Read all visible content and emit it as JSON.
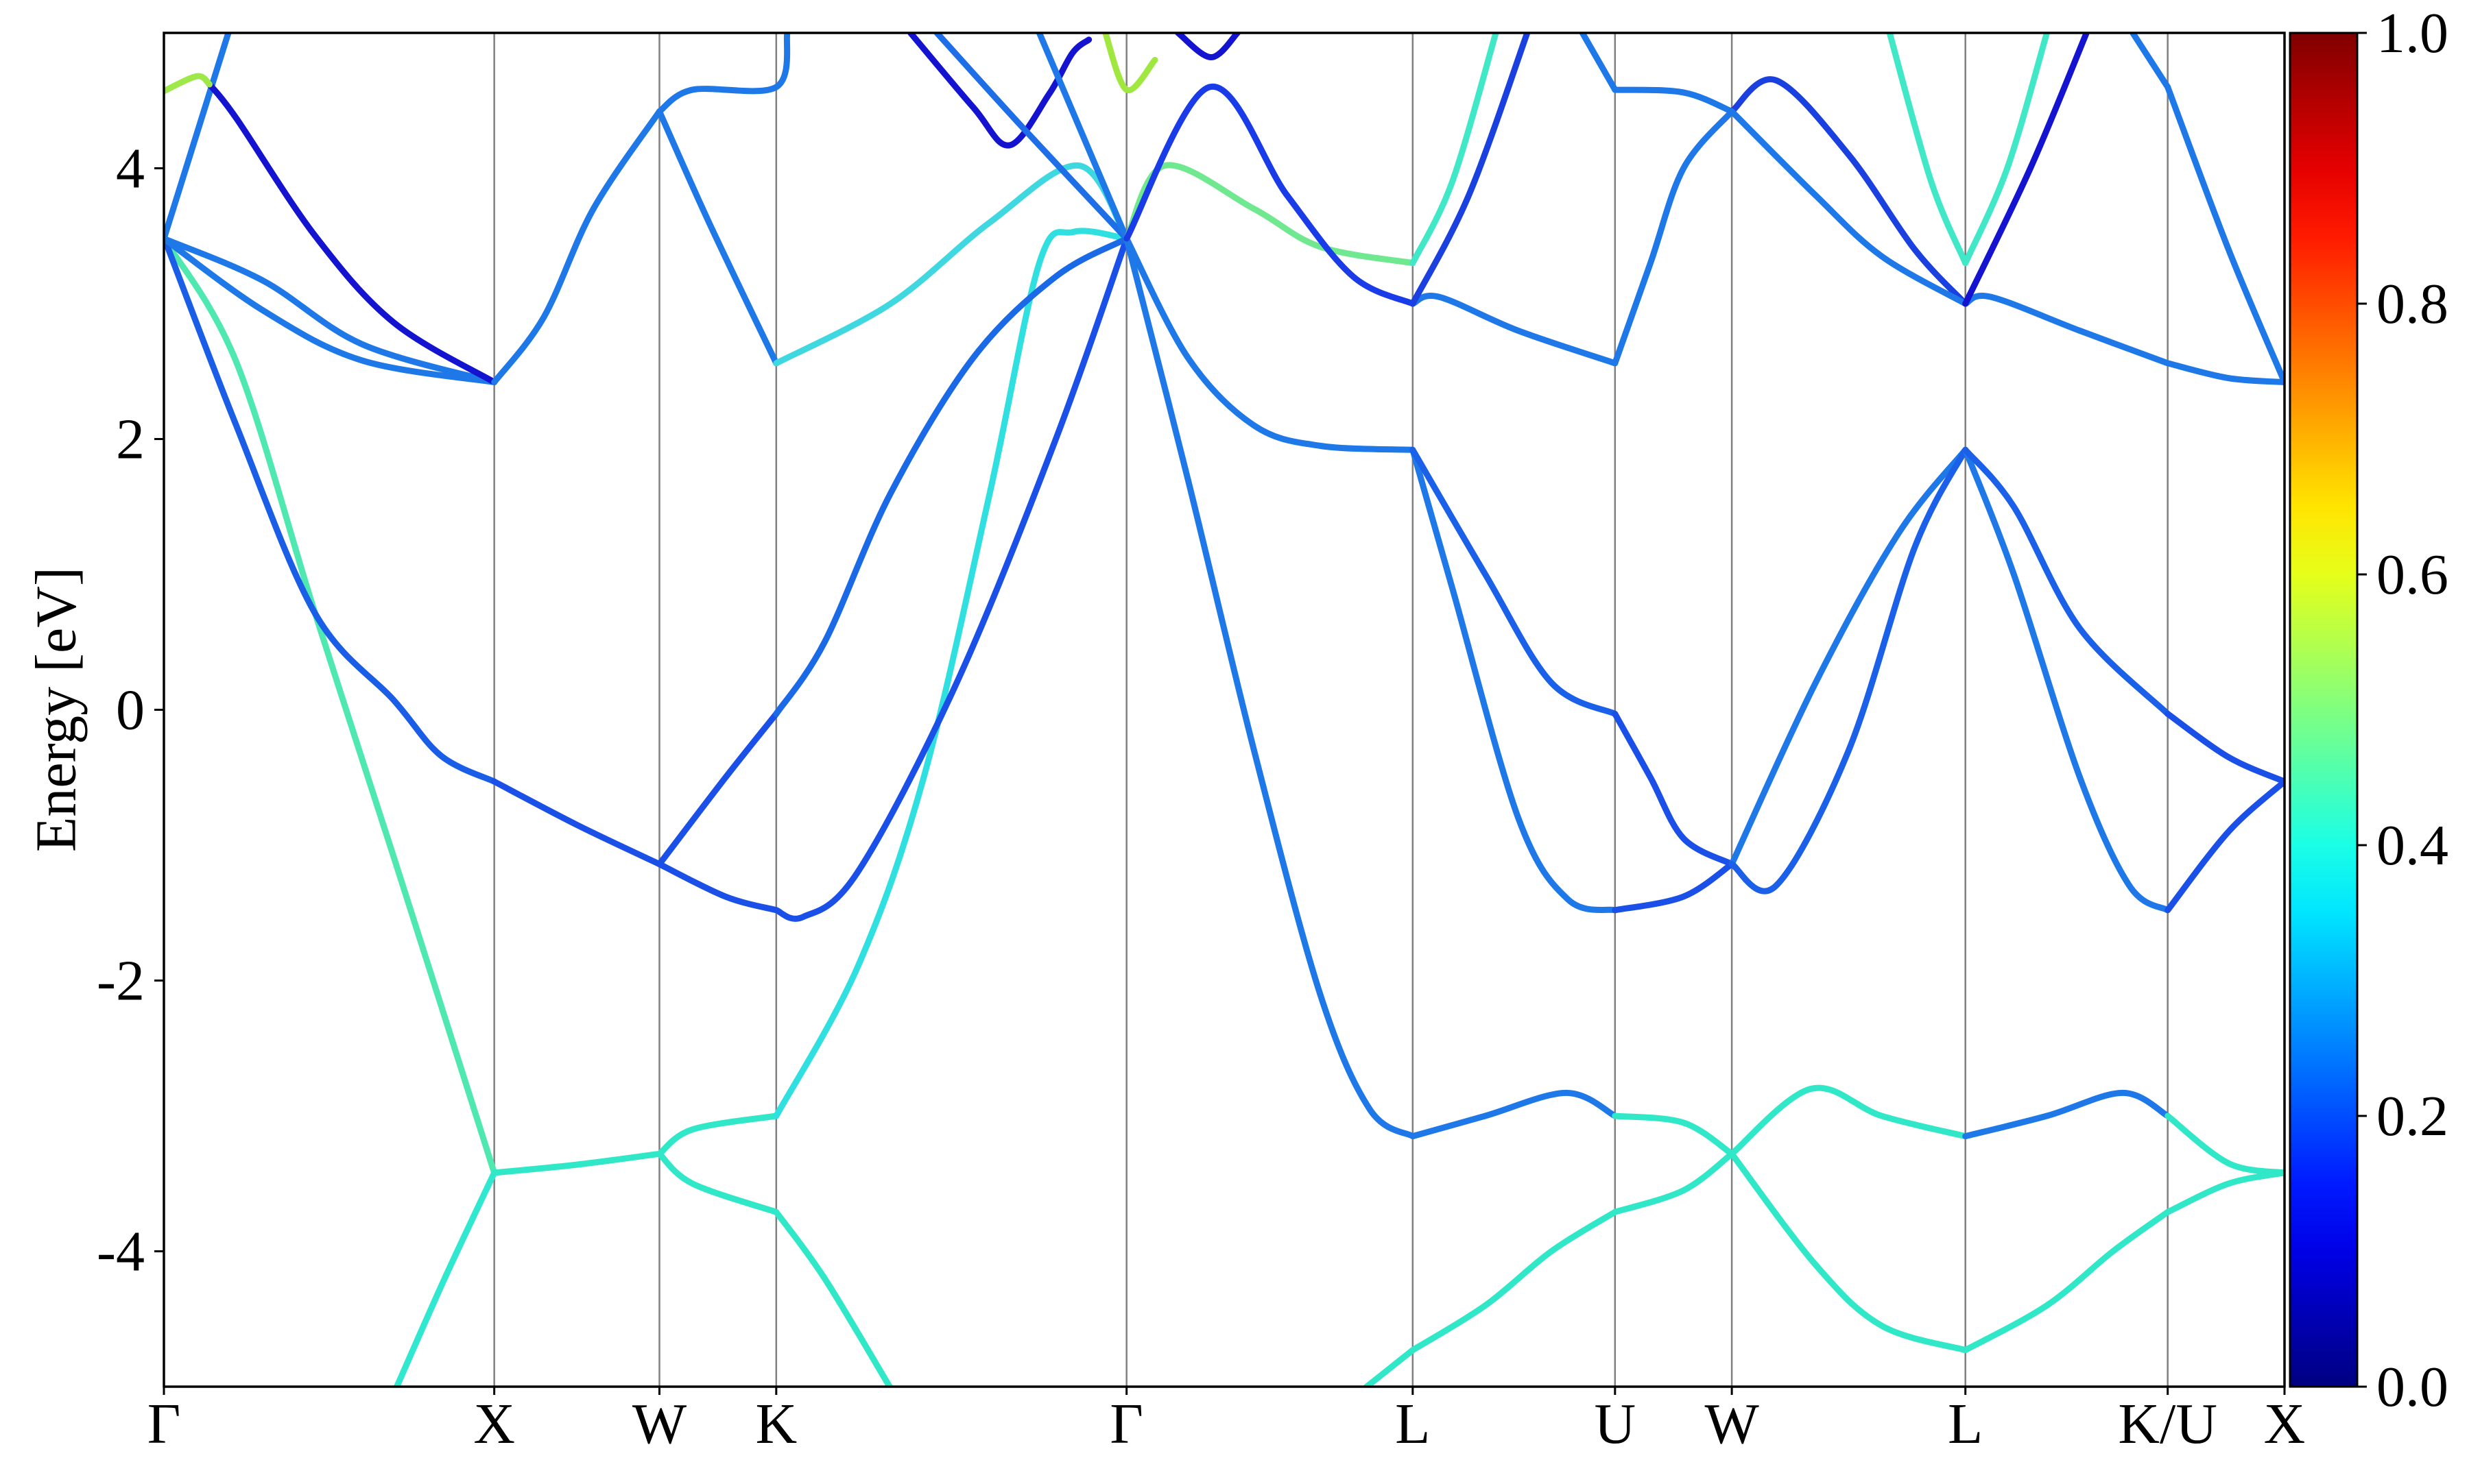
{
  "chart_data": {
    "type": "line",
    "ylabel": "Energy [eV]",
    "xlim": [
      0,
      6.4194
    ],
    "ylim": [
      -5,
      5
    ],
    "xticks": [
      {
        "value": 0,
        "label": "Γ"
      },
      {
        "value": 1,
        "label": "X"
      },
      {
        "value": 1.5,
        "label": "W"
      },
      {
        "value": 1.8536,
        "label": "K"
      },
      {
        "value": 2.9142,
        "label": "Γ"
      },
      {
        "value": 3.7803,
        "label": "L"
      },
      {
        "value": 4.3927,
        "label": "U"
      },
      {
        "value": 4.7463,
        "label": "W"
      },
      {
        "value": 5.4534,
        "label": "L"
      },
      {
        "value": 6.0658,
        "label": "K/U"
      },
      {
        "value": 6.4194,
        "label": "X"
      }
    ],
    "yticks": [
      -4,
      -2,
      0,
      2,
      4
    ],
    "grid": true,
    "colorbar": {
      "colormap": "jet",
      "lim": [
        0,
        1
      ],
      "ticks": [
        {
          "value": 0,
          "label": "0.0"
        },
        {
          "value": 0.2,
          "label": "0.2"
        },
        {
          "value": 0.4,
          "label": "0.4"
        },
        {
          "value": 0.6,
          "label": "0.6"
        },
        {
          "value": 0.8,
          "label": "0.8"
        },
        {
          "value": 1,
          "label": "1.0"
        }
      ]
    },
    "series": [
      {
        "color": "#4ee8b0",
        "x": [
          0,
          0.219,
          0.458,
          0.696,
          1.0
        ],
        "values": [
          3.48,
          2.57,
          0.71,
          -1.09,
          -3.42
        ]
      },
      {
        "color": "#30e8d0",
        "x": [
          0.705,
          0.85,
          1.0
        ],
        "values": [
          -5.0,
          -4.2,
          -3.42
        ]
      },
      {
        "color": "#1a5ee8",
        "x": [
          0,
          0.219,
          0.458,
          0.696,
          0.839,
          1.0
        ],
        "values": [
          3.49,
          2.1,
          0.71,
          0.07,
          -0.34,
          -0.53
        ]
      },
      {
        "color": "#1e78e8",
        "x": [
          0,
          0.3,
          0.6,
          1.0
        ],
        "values": [
          3.48,
          3.17,
          2.7,
          2.42
        ]
      },
      {
        "color": "#1e78e8",
        "x": [
          0,
          0.3,
          0.6,
          1.0
        ],
        "values": [
          3.48,
          2.95,
          2.58,
          2.42
        ]
      },
      {
        "color": "#1e78e8",
        "x": [
          0,
          0.195
        ],
        "values": [
          3.48,
          5.0
        ]
      },
      {
        "color": "#1414d0",
        "x": [
          0.138,
          0.219,
          0.458,
          0.696,
          1.0
        ],
        "values": [
          4.62,
          4.37,
          3.5,
          2.86,
          2.42
        ]
      },
      {
        "color": "#9ee84a",
        "x": [
          0,
          0.1,
          0.138
        ],
        "values": [
          4.57,
          4.68,
          4.62
        ]
      },
      {
        "color": "#30e8c8",
        "x": [
          1,
          1.25,
          1.5
        ],
        "values": [
          -3.42,
          -3.36,
          -3.28
        ]
      },
      {
        "color": "#1a50e8",
        "x": [
          1,
          1.25,
          1.5
        ],
        "values": [
          -0.53,
          -0.85,
          -1.14
        ]
      },
      {
        "color": "#1e78e8",
        "x": [
          1,
          1.15,
          1.3,
          1.5
        ],
        "values": [
          2.42,
          2.9,
          3.7,
          4.42
        ]
      },
      {
        "color": "#30e8c8",
        "x": [
          1.5,
          1.6,
          1.8536
        ],
        "values": [
          -3.28,
          -3.5,
          -3.71
        ]
      },
      {
        "color": "#30e8c8",
        "x": [
          1.5,
          1.6,
          1.8536
        ],
        "values": [
          -3.28,
          -3.1,
          -3.0
        ]
      },
      {
        "color": "#1a50e8",
        "x": [
          1.5,
          1.7,
          1.8536
        ],
        "values": [
          -1.14,
          -1.38,
          -1.48
        ]
      },
      {
        "color": "#1a50e8",
        "x": [
          1.5,
          1.7,
          1.8536
        ],
        "values": [
          -1.14,
          -0.5,
          -0.03
        ]
      },
      {
        "color": "#1e78e8",
        "x": [
          1.5,
          1.65,
          1.8536
        ],
        "values": [
          4.42,
          3.6,
          2.56
        ]
      },
      {
        "color": "#1e78e8",
        "x": [
          1.5,
          1.6,
          1.8536,
          1.887
        ],
        "values": [
          4.42,
          4.58,
          4.6,
          5.0
        ]
      },
      {
        "color": "#30e8c8",
        "x": [
          1.8536,
          2.0,
          2.197
        ],
        "values": [
          -3.71,
          -4.2,
          -5.0
        ]
      },
      {
        "color": "#30e0e0",
        "x": [
          1.8536,
          2.1,
          2.3,
          2.5,
          2.65,
          2.754,
          2.9142
        ],
        "values": [
          -3.0,
          -1.9,
          -0.5,
          1.6,
          3.3,
          3.53,
          3.48
        ]
      },
      {
        "color": "#1a50e8",
        "x": [
          1.8536,
          1.935,
          2.1,
          2.4,
          2.7,
          2.9142
        ],
        "values": [
          -1.48,
          -1.53,
          -1.2,
          0.2,
          2.0,
          3.48
        ]
      },
      {
        "color": "#1a6ae8",
        "x": [
          1.8536,
          2.0,
          2.2,
          2.45,
          2.7,
          2.9142
        ],
        "values": [
          -0.03,
          0.5,
          1.6,
          2.6,
          3.2,
          3.48
        ]
      },
      {
        "color": "#40d8e0",
        "x": [
          1.8536,
          2.2,
          2.5,
          2.77,
          2.9142
        ],
        "values": [
          2.56,
          3.0,
          3.6,
          4.02,
          3.48
        ]
      },
      {
        "color": "#1414d0",
        "x": [
          2.26,
          2.45,
          2.56,
          2.68,
          2.75,
          2.8
        ],
        "values": [
          5.0,
          4.45,
          4.17,
          4.55,
          4.85,
          4.95
        ]
      },
      {
        "color": "#1e6ee8",
        "x": [
          2.34,
          2.6,
          2.9142
        ],
        "values": [
          5.0,
          4.3,
          3.48
        ]
      },
      {
        "color": "#1e78e8",
        "x": [
          2.65,
          2.9142
        ],
        "values": [
          5.0,
          3.48
        ]
      },
      {
        "color": "#a0e840",
        "x": [
          2.85,
          2.9142,
          3.0
        ],
        "values": [
          5.0,
          4.58,
          4.8
        ]
      },
      {
        "color": "#1414d0",
        "x": [
          3.07,
          3.17,
          3.25
        ],
        "values": [
          5.0,
          4.82,
          5.0
        ]
      },
      {
        "color": "#1e78e8",
        "x": [
          2.9142,
          3.1,
          3.3,
          3.5,
          3.65,
          3.7803
        ],
        "values": [
          3.48,
          1.7,
          -0.3,
          -2.1,
          -2.95,
          -3.15
        ]
      },
      {
        "color": "#30e8c8",
        "x": [
          3.641,
          3.7803
        ],
        "values": [
          -5.0,
          -4.73
        ]
      },
      {
        "color": "#1e78e8",
        "x": [
          2.9142,
          3.1,
          3.3,
          3.5,
          3.7803
        ],
        "values": [
          3.48,
          2.6,
          2.1,
          1.95,
          1.92
        ]
      },
      {
        "color": "#70e890",
        "x": [
          2.9142,
          3.03,
          3.3,
          3.5,
          3.7803
        ],
        "values": [
          3.48,
          4.02,
          3.7,
          3.42,
          3.3
        ]
      },
      {
        "color": "#1a3ce8",
        "x": [
          2.9142,
          3.165,
          3.4,
          3.6,
          3.7803
        ],
        "values": [
          3.48,
          4.6,
          3.8,
          3.2,
          3.0
        ]
      },
      {
        "color": "#30e8c8",
        "x": [
          3.7803,
          4.0,
          4.2,
          4.3927
        ],
        "values": [
          -4.73,
          -4.4,
          -4.0,
          -3.71
        ]
      },
      {
        "color": "#1e78e8",
        "x": [
          3.7803,
          4.0,
          4.246,
          4.3927
        ],
        "values": [
          -3.15,
          -3.0,
          -2.83,
          -3.0
        ]
      },
      {
        "color": "#1e78e8",
        "x": [
          3.7803,
          3.9,
          4.1,
          4.25,
          4.3927
        ],
        "values": [
          1.92,
          0.9,
          -0.8,
          -1.4,
          -1.48
        ]
      },
      {
        "color": "#1a60e8",
        "x": [
          3.7803,
          4.0,
          4.2,
          4.3927
        ],
        "values": [
          1.92,
          1.0,
          0.2,
          -0.03
        ]
      },
      {
        "color": "#1e78e8",
        "x": [
          3.7803,
          3.86,
          4.1,
          4.3927
        ],
        "values": [
          3.0,
          3.05,
          2.8,
          2.56
        ]
      },
      {
        "color": "#40e8c8",
        "x": [
          3.7803,
          3.9,
          4.032
        ],
        "values": [
          3.3,
          3.9,
          5.0
        ]
      },
      {
        "color": "#1a40e0",
        "x": [
          3.7803,
          3.95,
          4.127
        ],
        "values": [
          3.0,
          3.8,
          5.0
        ]
      },
      {
        "color": "#1e78e8",
        "x": [
          4.294,
          4.3927
        ],
        "values": [
          5.0,
          4.58
        ]
      },
      {
        "color": "#30e8c8",
        "x": [
          4.3927,
          4.6,
          4.7463
        ],
        "values": [
          -3.71,
          -3.55,
          -3.28
        ]
      },
      {
        "color": "#30e8c8",
        "x": [
          4.3927,
          4.6,
          4.7463
        ],
        "values": [
          -3.0,
          -3.05,
          -3.28
        ]
      },
      {
        "color": "#1a50e8",
        "x": [
          4.3927,
          4.5,
          4.6,
          4.7463
        ],
        "values": [
          -0.03,
          -0.5,
          -0.95,
          -1.14
        ]
      },
      {
        "color": "#1a50e8",
        "x": [
          4.3927,
          4.6,
          4.7463
        ],
        "values": [
          -1.48,
          -1.38,
          -1.14
        ]
      },
      {
        "color": "#1e78e8",
        "x": [
          4.3927,
          4.5,
          4.6,
          4.7463
        ],
        "values": [
          2.56,
          3.3,
          4.0,
          4.42
        ]
      },
      {
        "color": "#1e78e8",
        "x": [
          4.3927,
          4.6,
          4.7463
        ],
        "values": [
          4.58,
          4.56,
          4.42
        ]
      },
      {
        "color": "#30e8c8",
        "x": [
          4.7463,
          5.0,
          5.2,
          5.4534
        ],
        "values": [
          -3.28,
          -4.1,
          -4.55,
          -4.73
        ]
      },
      {
        "color": "#30e8c8",
        "x": [
          4.7463,
          4.985,
          5.2,
          5.4534
        ],
        "values": [
          -3.28,
          -2.8,
          -3.0,
          -3.15
        ]
      },
      {
        "color": "#1e78e8",
        "x": [
          4.7463,
          5.0,
          5.25,
          5.4534
        ],
        "values": [
          -1.14,
          0.2,
          1.3,
          1.92
        ]
      },
      {
        "color": "#1a60e8",
        "x": [
          4.7463,
          4.88,
          5.1,
          5.3,
          5.4534
        ],
        "values": [
          -1.14,
          -1.3,
          -0.3,
          1.2,
          1.92
        ]
      },
      {
        "color": "#1a40e0",
        "x": [
          4.7463,
          4.88,
          5.1,
          5.3,
          5.4534
        ],
        "values": [
          4.42,
          4.65,
          4.1,
          3.4,
          3.0
        ]
      },
      {
        "color": "#1e78e8",
        "x": [
          4.7463,
          5.0,
          5.2,
          5.4534
        ],
        "values": [
          4.42,
          3.8,
          3.35,
          3.0
        ]
      },
      {
        "color": "#40e8c8",
        "x": [
          5.224,
          5.35,
          5.4534
        ],
        "values": [
          5.0,
          3.9,
          3.3
        ]
      },
      {
        "color": "#40e8c8",
        "x": [
          5.4534,
          5.58,
          5.7
        ],
        "values": [
          3.3,
          4.0,
          5.0
        ]
      },
      {
        "color": "#30e8c8",
        "x": [
          5.4534,
          5.7,
          5.9,
          6.0658
        ],
        "values": [
          -4.73,
          -4.4,
          -4.0,
          -3.71
        ]
      },
      {
        "color": "#1e78e8",
        "x": [
          5.4534,
          5.7,
          5.93,
          6.0658
        ],
        "values": [
          -3.15,
          -3.0,
          -2.83,
          -3.0
        ]
      },
      {
        "color": "#1e78e8",
        "x": [
          5.4534,
          5.6,
          5.8,
          5.95,
          6.0658
        ],
        "values": [
          1.92,
          1.0,
          -0.5,
          -1.3,
          -1.48
        ]
      },
      {
        "color": "#1a60e8",
        "x": [
          5.4534,
          5.6,
          5.8,
          6.0658
        ],
        "values": [
          1.92,
          1.5,
          0.6,
          -0.03
        ]
      },
      {
        "color": "#1e78e8",
        "x": [
          5.4534,
          5.53,
          5.8,
          6.0658
        ],
        "values": [
          3.0,
          3.05,
          2.8,
          2.56
        ]
      },
      {
        "color": "#1414d0",
        "x": [
          5.4534,
          5.65,
          5.82
        ],
        "values": [
          3.0,
          4.0,
          5.0
        ]
      },
      {
        "color": "#1e78e8",
        "x": [
          5.96,
          6.0658
        ],
        "values": [
          5.0,
          4.6
        ]
      },
      {
        "color": "#30e8c8",
        "x": [
          6.0658,
          6.25,
          6.4194
        ],
        "values": [
          -3.71,
          -3.5,
          -3.42
        ]
      },
      {
        "color": "#30e8c8",
        "x": [
          6.0658,
          6.25,
          6.4194
        ],
        "values": [
          -3.0,
          -3.35,
          -3.42
        ]
      },
      {
        "color": "#1a50e8",
        "x": [
          6.0658,
          6.25,
          6.4194
        ],
        "values": [
          -1.48,
          -0.9,
          -0.53
        ]
      },
      {
        "color": "#1a50e8",
        "x": [
          6.0658,
          6.25,
          6.4194
        ],
        "values": [
          -0.03,
          -0.35,
          -0.53
        ]
      },
      {
        "color": "#1e78e8",
        "x": [
          6.0658,
          6.25,
          6.4194
        ],
        "values": [
          2.56,
          2.45,
          2.42
        ]
      },
      {
        "color": "#1e78e8",
        "x": [
          6.0658,
          6.25,
          6.4194
        ],
        "values": [
          4.6,
          3.4,
          2.42
        ]
      }
    ]
  }
}
